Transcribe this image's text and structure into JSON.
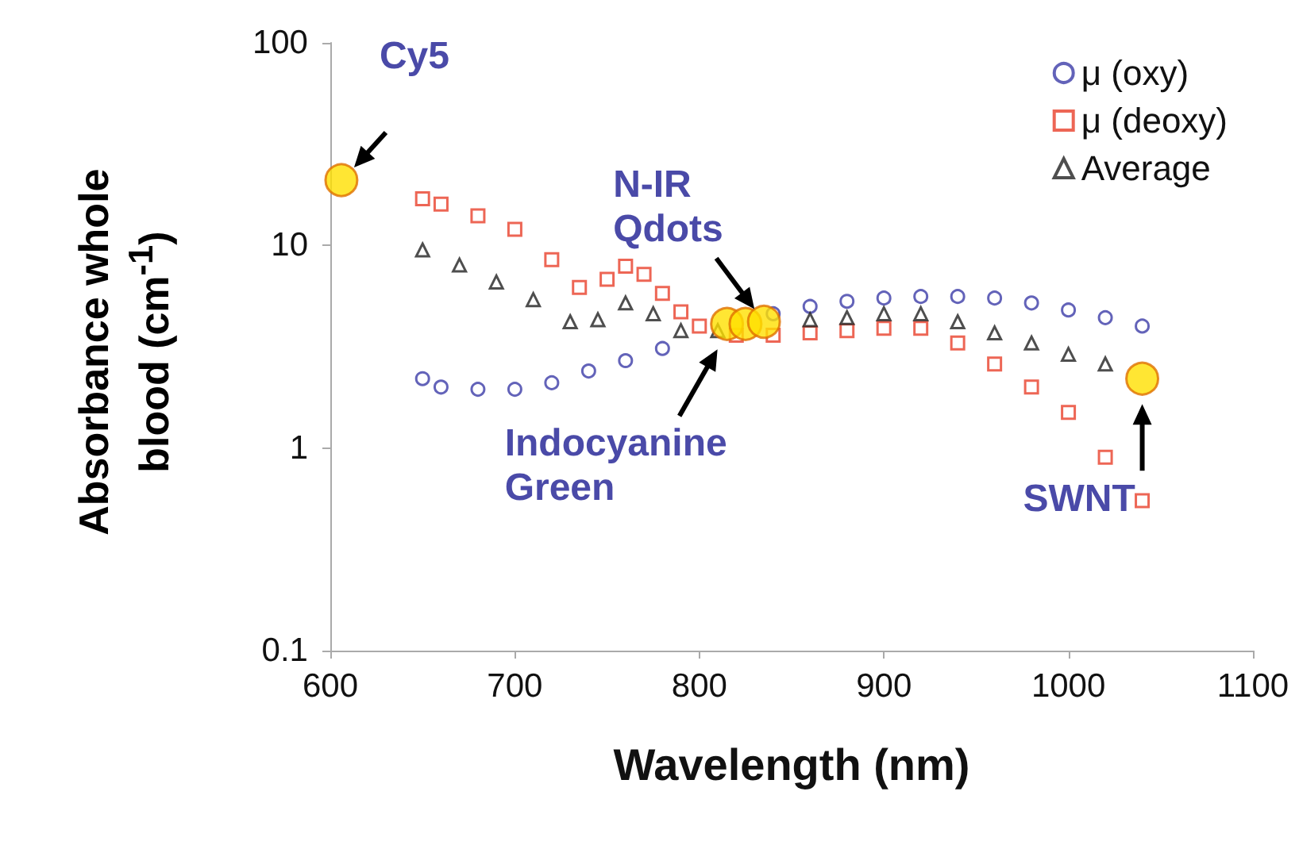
{
  "chart_data": {
    "type": "scatter",
    "xlabel": "Wavelength (nm)",
    "ylabel": "Absorbance whole blood (cm$^{-1}$)",
    "xlim": [
      600,
      1100
    ],
    "xticks": [
      600,
      700,
      800,
      900,
      1000,
      1100
    ],
    "ylim": [
      0.1,
      100
    ],
    "yticks": [
      0.1,
      1,
      10,
      100
    ],
    "log": "y",
    "grid": false,
    "legend": "top right",
    "series": [
      {
        "name": "μ (oxy)",
        "color": "#3c3ca8",
        "marker": "circle",
        "x": [
          650,
          660,
          680,
          700,
          720,
          740,
          760,
          780,
          800,
          820,
          840,
          860,
          880,
          900,
          920,
          940,
          960,
          980,
          1000,
          1020,
          1040
        ],
        "values": [
          2.2,
          2.0,
          1.95,
          1.95,
          2.1,
          2.4,
          2.7,
          3.1,
          null,
          null,
          4.6,
          5.0,
          5.3,
          5.5,
          5.6,
          5.6,
          5.5,
          5.2,
          4.8,
          4.4,
          4.0
        ]
      },
      {
        "name": "μ (deoxy)",
        "color": "#e8402a",
        "marker": "square",
        "x": [
          650,
          660,
          680,
          700,
          720,
          735,
          750,
          760,
          770,
          780,
          790,
          800,
          820,
          840,
          860,
          880,
          900,
          920,
          940,
          960,
          980,
          1000,
          1020,
          1040
        ],
        "values": [
          17,
          16,
          14,
          12,
          8.5,
          6.2,
          6.8,
          7.9,
          7.2,
          5.8,
          4.7,
          4.0,
          3.6,
          3.6,
          3.7,
          3.8,
          3.9,
          3.9,
          3.3,
          2.6,
          2.0,
          1.5,
          0.9,
          0.55
        ]
      },
      {
        "name": "Average",
        "color": "#222222",
        "marker": "triangle",
        "x": [
          650,
          670,
          690,
          710,
          730,
          745,
          760,
          775,
          790,
          810,
          830,
          860,
          880,
          900,
          920,
          940,
          960,
          980,
          1000,
          1020
        ],
        "values": [
          9.5,
          8.0,
          6.6,
          5.4,
          4.2,
          4.3,
          5.2,
          4.6,
          3.8,
          3.8,
          null,
          4.3,
          4.4,
          4.6,
          4.6,
          4.2,
          3.7,
          3.3,
          2.9,
          2.6
        ]
      },
      {
        "color": "#ffe000",
        "marker": "circle",
        "x": [
          606,
          815,
          825,
          835,
          1040
        ],
        "values": [
          21,
          4.1,
          4.1,
          4.2,
          2.2
        ]
      }
    ],
    "annotations": [
      {
        "text": "Cy5",
        "x": 606,
        "y": 21
      },
      {
        "text": "N-IR Qdots",
        "x": 835,
        "y": 4.2
      },
      {
        "text": "Indocyanine Green",
        "x": 815,
        "y": 4.1
      },
      {
        "text": "SWNT",
        "x": 1040,
        "y": 2.2
      }
    ]
  }
}
